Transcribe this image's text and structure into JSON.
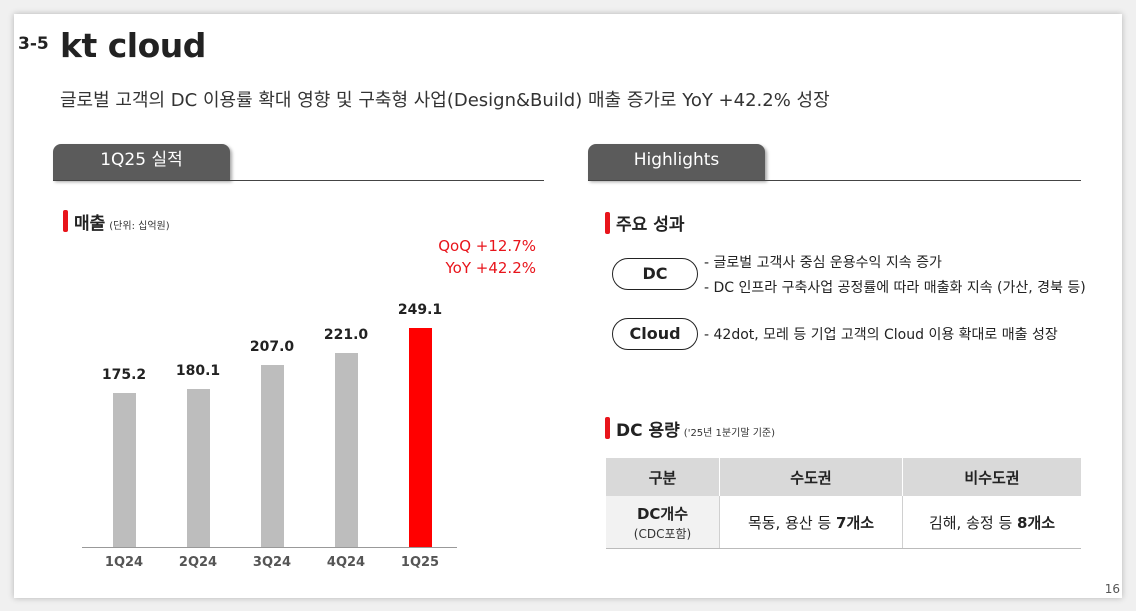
{
  "header": {
    "section_number": "3-5",
    "title": "kt cloud",
    "subtitle": "글로벌 고객의 DC 이용률 확대 영향 및 구축형 사업(Design&Build) 매출 증가로 YoY +42.2% 성장"
  },
  "left_panel": {
    "tab_label": "1Q25 실적",
    "section_title": "매출",
    "unit_note": "(단위: 십억원)",
    "growth": {
      "qoq": "QoQ +12.7%",
      "yoy": "YoY +42.2%"
    }
  },
  "chart_data": {
    "type": "bar",
    "title": "매출",
    "categories": [
      "1Q24",
      "2Q24",
      "3Q24",
      "4Q24",
      "1Q25"
    ],
    "values": [
      175.2,
      180.1,
      207.0,
      221.0,
      249.1
    ],
    "value_labels": [
      "175.2",
      "180.1",
      "207.0",
      "221.0",
      "249.1"
    ],
    "ylim": [
      0,
      249.1
    ],
    "colors": {
      "default": "#bdbdbd",
      "highlight": "#ff0000"
    },
    "highlight_index": 4,
    "grid": false
  },
  "right_panel": {
    "tab_label": "Highlights",
    "key_results_title": "주요 성과",
    "items": [
      {
        "tag": "DC",
        "lines": [
          "글로벌 고객사 중심 운용수익 지속 증가",
          "DC 인프라 구축사업 공정률에 따라 매출화 지속 (가산, 경북 등)"
        ]
      },
      {
        "tag": "Cloud",
        "lines": [
          "42dot, 모레 등 기업 고객의 Cloud 이용 확대로 매출 성장"
        ]
      }
    ],
    "dc_capacity_title": "DC 용량",
    "dc_capacity_note": "('25년 1분기말 기준)",
    "table": {
      "headers": [
        "구분",
        "수도권",
        "비수도권"
      ],
      "row_label": "DC개수",
      "row_sublabel": "(CDC포함)",
      "metro_prefix": "목동, 용산 등 ",
      "metro_count": "7개소",
      "nonmetro_prefix": "김해, 송정 등 ",
      "nonmetro_count": "8개소"
    }
  },
  "footer": {
    "page_number": "16"
  }
}
